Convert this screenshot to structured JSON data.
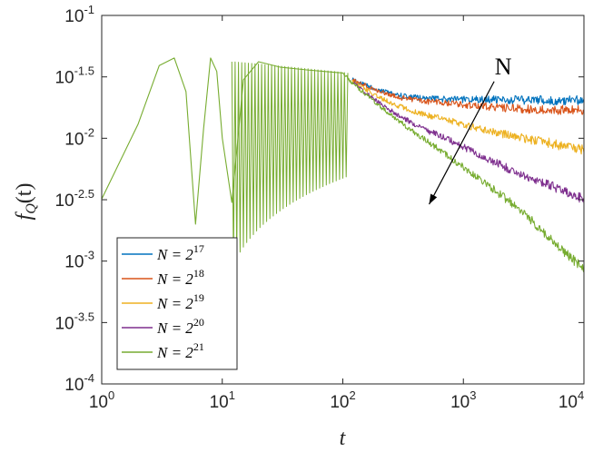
{
  "chart_data": {
    "type": "line",
    "xscale": "log",
    "yscale": "log",
    "xlabel": "t",
    "ylabel": "f_Q(t)",
    "ylabel_parts": {
      "main": "f",
      "sub": "Q",
      "arg": "(t)"
    },
    "xlim": [
      1,
      10000
    ],
    "ylim": [
      0.0001,
      0.1
    ],
    "x_ticks": [
      {
        "value": 1,
        "base": "10",
        "exp": "0"
      },
      {
        "value": 10,
        "base": "10",
        "exp": "1"
      },
      {
        "value": 100,
        "base": "10",
        "exp": "2"
      },
      {
        "value": 1000,
        "base": "10",
        "exp": "3"
      },
      {
        "value": 10000,
        "base": "10",
        "exp": "4"
      }
    ],
    "y_ticks": [
      {
        "value": 0.1,
        "base": "10",
        "exp": "-1"
      },
      {
        "value": 0.0316,
        "base": "10",
        "exp": "-1.5"
      },
      {
        "value": 0.01,
        "base": "10",
        "exp": "-2"
      },
      {
        "value": 0.00316,
        "base": "10",
        "exp": "-2.5"
      },
      {
        "value": 0.001,
        "base": "10",
        "exp": "-3"
      },
      {
        "value": 0.000316,
        "base": "10",
        "exp": "-3.5"
      },
      {
        "value": 0.0001,
        "base": "10",
        "exp": "-4"
      }
    ],
    "legend_position": "bottom-left",
    "series": [
      {
        "name": "N = 2^17",
        "label_main": "N = 2",
        "label_exp": "17",
        "color": "#0072BD",
        "x": [
          120,
          200,
          300,
          500,
          800,
          1000,
          1500,
          2000,
          3000,
          5000,
          10000
        ],
        "y": [
          0.03,
          0.0245,
          0.0222,
          0.021,
          0.0208,
          0.0207,
          0.0206,
          0.0206,
          0.0205,
          0.0205,
          0.0205
        ]
      },
      {
        "name": "N = 2^18",
        "label_main": "N = 2",
        "label_exp": "18",
        "color": "#D95319",
        "x": [
          120,
          200,
          300,
          500,
          800,
          1000,
          1500,
          2000,
          3000,
          5000,
          10000
        ],
        "y": [
          0.03,
          0.024,
          0.0214,
          0.02,
          0.0192,
          0.0188,
          0.0182,
          0.0178,
          0.0174,
          0.0171,
          0.0168
        ]
      },
      {
        "name": "N = 2^19",
        "label_main": "N = 2",
        "label_exp": "19",
        "color": "#EDB120",
        "x": [
          120,
          200,
          300,
          500,
          800,
          1000,
          1500,
          2000,
          3000,
          5000,
          10000
        ],
        "y": [
          0.029,
          0.0215,
          0.018,
          0.0154,
          0.0138,
          0.013,
          0.0117,
          0.011,
          0.0101,
          0.0092,
          0.008
        ]
      },
      {
        "name": "N = 2^20",
        "label_main": "N = 2",
        "label_exp": "20",
        "color": "#7E2F8E",
        "x": [
          120,
          200,
          300,
          500,
          800,
          1000,
          1500,
          2000,
          3000,
          5000,
          10000
        ],
        "y": [
          0.0285,
          0.0195,
          0.015,
          0.0116,
          0.0095,
          0.0085,
          0.007,
          0.0061,
          0.0051,
          0.0042,
          0.0032
        ]
      },
      {
        "name": "N = 2^21",
        "label_main": "N = 2",
        "label_exp": "21",
        "color": "#77AC30",
        "x": [
          1,
          2,
          3,
          4,
          5,
          6,
          7,
          8,
          9,
          10,
          12,
          15,
          20,
          30,
          50,
          70,
          100,
          120,
          200,
          300,
          500,
          800,
          1000,
          1500,
          2000,
          3000,
          5000,
          10000
        ],
        "y": [
          0.0032,
          0.013,
          0.039,
          0.045,
          0.024,
          0.002,
          0.012,
          0.045,
          0.035,
          0.01,
          0.003,
          0.03,
          0.042,
          0.038,
          0.036,
          0.035,
          0.034,
          0.028,
          0.0185,
          0.0135,
          0.0095,
          0.0068,
          0.0058,
          0.0044,
          0.0035,
          0.0026,
          0.0016,
          0.00085
        ]
      }
    ],
    "annotation": {
      "label": "N",
      "from": [
        1800,
        0.029
      ],
      "to": [
        520,
        0.0029
      ]
    }
  }
}
